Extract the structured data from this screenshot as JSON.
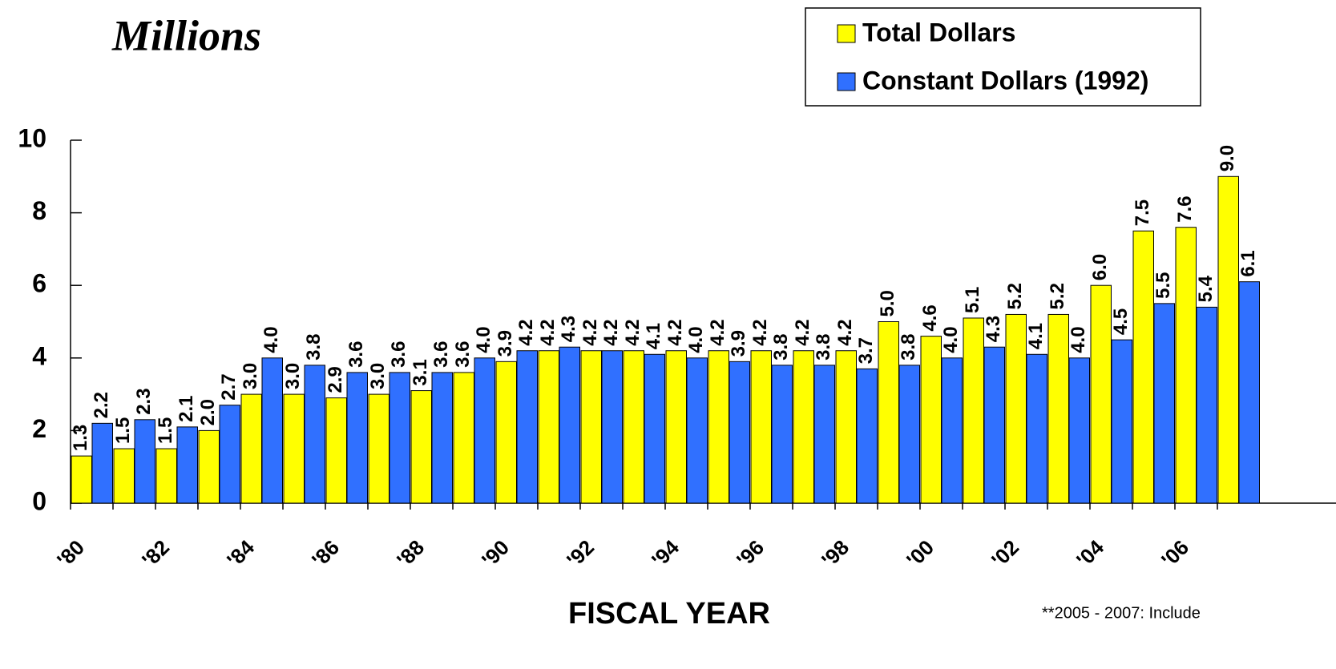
{
  "chart_data": {
    "type": "bar",
    "title": "Millions",
    "x_label": "FISCAL YEAR",
    "footnote": "**2005 - 2007: Include",
    "categories": [
      "'80",
      null,
      "'82",
      null,
      "'84",
      null,
      "'86",
      null,
      "'88",
      null,
      "'90",
      null,
      "'92",
      null,
      "'94",
      null,
      "'96",
      null,
      "'98",
      null,
      "'00",
      null,
      "'02",
      null,
      "'04",
      null,
      "'06",
      null
    ],
    "series": [
      {
        "name": "Total Dollars",
        "color": "#ffff00",
        "values": [
          1.3,
          1.5,
          1.5,
          2.0,
          3.0,
          3.0,
          2.9,
          3.0,
          3.1,
          3.6,
          3.9,
          4.2,
          4.2,
          4.2,
          4.2,
          4.2,
          4.2,
          4.2,
          4.2,
          5.0,
          4.6,
          5.1,
          5.2,
          5.2,
          6.0,
          7.5,
          7.6,
          9.0
        ],
        "value_labels": [
          "1.3",
          "1.5",
          "1.5",
          "2.0",
          "3.0",
          "3.0",
          "2.9",
          "3.0",
          "3.1",
          "3.6",
          "3.9",
          "4.2",
          "4.2",
          "4.2",
          "4.2",
          "4.2",
          "4.2",
          "4.2",
          "4.2",
          "5.0",
          "4.6",
          "5.1",
          "5.2",
          "5.2",
          "6.0",
          "7.5",
          "7.6",
          "9.0"
        ]
      },
      {
        "name": "Constant Dollars (1992)",
        "color": "#3070ff",
        "values": [
          2.2,
          2.3,
          2.1,
          2.7,
          4.0,
          3.8,
          3.6,
          3.6,
          3.6,
          4.0,
          4.2,
          4.3,
          4.2,
          4.1,
          4.0,
          3.9,
          3.8,
          3.8,
          3.7,
          3.8,
          4.0,
          4.3,
          4.1,
          4.0,
          4.5,
          5.5,
          5.4,
          6.1
        ],
        "value_labels": [
          "2.2",
          "2.3",
          "2.1",
          "2.7",
          "4.0",
          "3.8",
          "3.6",
          "3.6",
          "3.6",
          "4.0",
          "4.2",
          "4.3",
          "4.2",
          "4.1",
          "4.0",
          "3.9",
          "3.8",
          "3.8",
          "3.7",
          "3.8",
          "4.0",
          "4.3",
          "4.1",
          "4.0",
          "4.5",
          "5.5",
          "5.4",
          "6.1"
        ]
      }
    ],
    "ylim": [
      0,
      10
    ],
    "yticks": [
      0,
      2,
      4,
      6,
      8,
      10
    ],
    "legend": "upper right"
  }
}
